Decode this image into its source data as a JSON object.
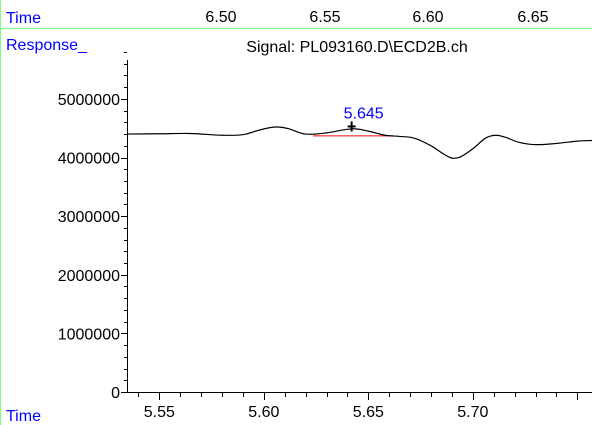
{
  "labels": {
    "top_axis_name": "Time",
    "y_axis_name": "Response_",
    "bottom_axis_name": "Time"
  },
  "colors": {
    "frame_green": "#7fff7f",
    "label_blue": "#0000ff",
    "trace": "#000000",
    "baseline_red": "#ff0000"
  },
  "chart_data": {
    "type": "line",
    "title": "Signal: PL093160.D\\ECD2B.ch",
    "xlabel": "Time",
    "ylabel": "Response_",
    "xlim": [
      5.535,
      5.757
    ],
    "ylim": [
      0,
      5800000
    ],
    "x_ticks": [
      5.55,
      5.6,
      5.65,
      5.7
    ],
    "y_ticks": [
      0,
      1000000,
      2000000,
      3000000,
      4000000,
      5000000
    ],
    "top_axis": {
      "label": "Time",
      "ticks": [
        "6.50",
        "6.55",
        "6.60",
        "6.65"
      ]
    },
    "series": [
      {
        "x": [
          5.535,
          5.55,
          5.565,
          5.58,
          5.59,
          5.597,
          5.603,
          5.607,
          5.612,
          5.62,
          5.63,
          5.642,
          5.65,
          5.658,
          5.665,
          5.672,
          5.68,
          5.686,
          5.69,
          5.694,
          5.7,
          5.706,
          5.711,
          5.716,
          5.722,
          5.73,
          5.74,
          5.75,
          5.757
        ],
        "y": [
          4400000,
          4405000,
          4410000,
          4380000,
          4390000,
          4460000,
          4510000,
          4520000,
          4490000,
          4400000,
          4420000,
          4490000,
          4450000,
          4380000,
          4360000,
          4330000,
          4200000,
          4060000,
          3990000,
          4010000,
          4150000,
          4330000,
          4380000,
          4340000,
          4260000,
          4220000,
          4240000,
          4280000,
          4290000
        ]
      }
    ],
    "peak": {
      "label": "5.645",
      "apex_time": 5.642,
      "apex_response": 4530000,
      "baseline_start": [
        5.6235,
        4370000
      ],
      "baseline_end": [
        5.662,
        4370000
      ]
    }
  }
}
